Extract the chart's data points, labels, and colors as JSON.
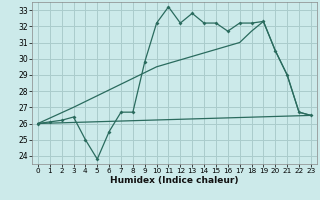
{
  "xlabel": "Humidex (Indice chaleur)",
  "background_color": "#cceaea",
  "grid_color": "#aacccc",
  "line_color": "#2a6b5e",
  "xlim": [
    -0.5,
    23.5
  ],
  "ylim": [
    23.5,
    33.5
  ],
  "xticks": [
    0,
    1,
    2,
    3,
    4,
    5,
    6,
    7,
    8,
    9,
    10,
    11,
    12,
    13,
    14,
    15,
    16,
    17,
    18,
    19,
    20,
    21,
    22,
    23
  ],
  "yticks": [
    24,
    25,
    26,
    27,
    28,
    29,
    30,
    31,
    32,
    33
  ],
  "line1_x": [
    0,
    1,
    2,
    3,
    4,
    5,
    6,
    7,
    8,
    9,
    10,
    11,
    12,
    13,
    14,
    15,
    16,
    17,
    18,
    19,
    20,
    21,
    22,
    23
  ],
  "line1_y": [
    26.0,
    26.1,
    26.2,
    26.4,
    25.0,
    23.8,
    25.5,
    26.7,
    26.7,
    29.8,
    32.2,
    33.2,
    32.2,
    32.8,
    32.2,
    32.2,
    31.7,
    32.2,
    32.2,
    32.3,
    30.5,
    29.0,
    26.7,
    26.5
  ],
  "line2_x": [
    0,
    3,
    10,
    17,
    18,
    19,
    20,
    21,
    22,
    23
  ],
  "line2_y": [
    26.0,
    27.0,
    29.5,
    31.0,
    31.7,
    32.3,
    30.5,
    29.0,
    26.7,
    26.5
  ],
  "line3_x": [
    0,
    23
  ],
  "line3_y": [
    26.0,
    26.5
  ]
}
